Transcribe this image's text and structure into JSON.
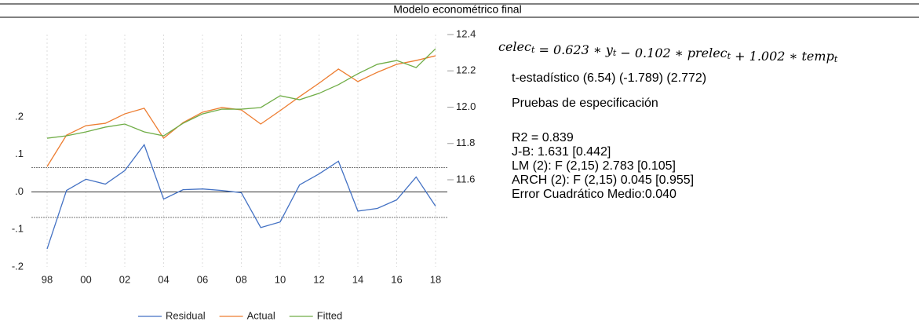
{
  "chart_data": {
    "type": "line",
    "title": "Modelo econométrico final",
    "categories": [
      "98",
      null,
      "00",
      null,
      "02",
      null,
      "04",
      null,
      "06",
      null,
      "08",
      null,
      "10",
      null,
      "12",
      null,
      "14",
      null,
      "16",
      null,
      "18"
    ],
    "series": [
      {
        "name": "Residual",
        "color": "#4472c4",
        "axis": "y",
        "values": [
          -0.152,
          0.004,
          0.034,
          0.021,
          0.057,
          0.126,
          -0.019,
          0.006,
          0.008,
          0.004,
          -0.002,
          -0.095,
          -0.08,
          0.019,
          0.048,
          0.082,
          -0.051,
          -0.044,
          -0.021,
          0.04,
          -0.038
        ]
      },
      {
        "name": "Actual",
        "color": "#ed7d31",
        "axis": "y2",
        "values": [
          11.673,
          11.846,
          11.898,
          11.911,
          11.963,
          11.994,
          11.829,
          11.915,
          11.972,
          11.998,
          11.985,
          11.907,
          11.981,
          12.058,
          12.132,
          12.21,
          12.141,
          12.192,
          12.236,
          12.257,
          12.283
        ]
      },
      {
        "name": "Fitted",
        "color": "#70ad47",
        "axis": "y2",
        "values": [
          11.829,
          11.842,
          11.864,
          11.89,
          11.907,
          11.864,
          11.842,
          11.911,
          11.963,
          11.989,
          11.989,
          11.998,
          12.063,
          12.041,
          12.076,
          12.124,
          12.184,
          12.236,
          12.257,
          12.218,
          12.322
        ]
      }
    ],
    "ylim": [
      -0.2,
      0.42
    ],
    "yticks": [
      {
        "value": -0.2,
        "label": "-.2"
      },
      {
        "value": -0.1,
        "label": "-.1"
      },
      {
        "value": 0,
        "label": ".0"
      },
      {
        "value": 0.1,
        "label": ".1"
      },
      {
        "value": 0.2,
        "label": ".2"
      }
    ],
    "y2lim": [
      11.12,
      12.4
    ],
    "y2ticks": [
      11.6,
      11.8,
      {
        "value": 12,
        "label": "12.0"
      },
      12.2,
      12.4
    ],
    "residual_band": [
      -0.068,
      0.065
    ],
    "grid": true,
    "legend": "bottom"
  },
  "text_panel": {
    "equation": [
      {
        "text": "celec",
        "sub": "t"
      },
      {
        "text": " = 0.623 ∗ y",
        "sub": "t"
      },
      {
        "text": " −  0.102 ∗ prelec",
        "sub": "t"
      },
      {
        "text": " + 1.002 ∗ temp",
        "sub": "t"
      }
    ],
    "lines": [
      "t-estadístico (6.54) (-1.789) (2.772)",
      "Pruebas de especificación",
      "R2 = 0.839",
      "J-B: 1.631 [0.442]",
      "LM (2): F (2,15) 2.783 [0.105]",
      "ARCH (2): F (2,15) 0.045 [0.955]",
      "Error Cuadrático Medio:0.040"
    ]
  }
}
